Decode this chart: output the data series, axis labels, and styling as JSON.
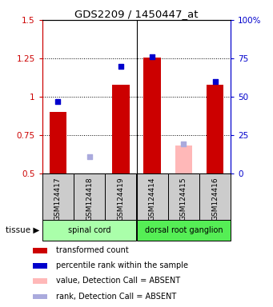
{
  "title": "GDS2209 / 1450447_at",
  "samples": [
    "GSM124417",
    "GSM124418",
    "GSM124419",
    "GSM124414",
    "GSM124415",
    "GSM124416"
  ],
  "tissue_groups": [
    {
      "label": "spinal cord",
      "indices": [
        0,
        1,
        2
      ],
      "color": "#aaffaa"
    },
    {
      "label": "dorsal root ganglion",
      "indices": [
        3,
        4,
        5
      ],
      "color": "#55ee55"
    }
  ],
  "tissue_label": "tissue",
  "bar_values": [
    0.9,
    null,
    1.08,
    1.255,
    null,
    1.08
  ],
  "bar_color": "#cc0000",
  "absent_bar_values": [
    null,
    null,
    null,
    null,
    0.68,
    null
  ],
  "absent_bar_color": "#ffb8b8",
  "dot_values": [
    0.97,
    null,
    1.2,
    1.26,
    null,
    1.1
  ],
  "dot_color": "#0000cc",
  "absent_dot_values": [
    null,
    0.61,
    null,
    null,
    0.69,
    null
  ],
  "absent_dot_color": "#aaaadd",
  "ylim": [
    0.5,
    1.5
  ],
  "yticks_left": [
    0.5,
    0.75,
    1.0,
    1.25,
    1.5
  ],
  "ytick_labels_left": [
    "0.5",
    "0.75",
    "1",
    "1.25",
    "1.5"
  ],
  "yticks_right": [
    0.5,
    0.75,
    1.0,
    1.25,
    1.5
  ],
  "ytick_labels_right": [
    "0",
    "25",
    "50",
    "75",
    "100%"
  ],
  "hlines": [
    0.75,
    1.0,
    1.25
  ],
  "bar_width": 0.55,
  "left_axis_color": "#cc0000",
  "right_axis_color": "#0000cc",
  "bg_color": "#cccccc",
  "legend_items": [
    {
      "color": "#cc0000",
      "label": "transformed count"
    },
    {
      "color": "#0000cc",
      "label": "percentile rank within the sample"
    },
    {
      "color": "#ffb8b8",
      "label": "value, Detection Call = ABSENT"
    },
    {
      "color": "#aaaadd",
      "label": "rank, Detection Call = ABSENT"
    }
  ]
}
